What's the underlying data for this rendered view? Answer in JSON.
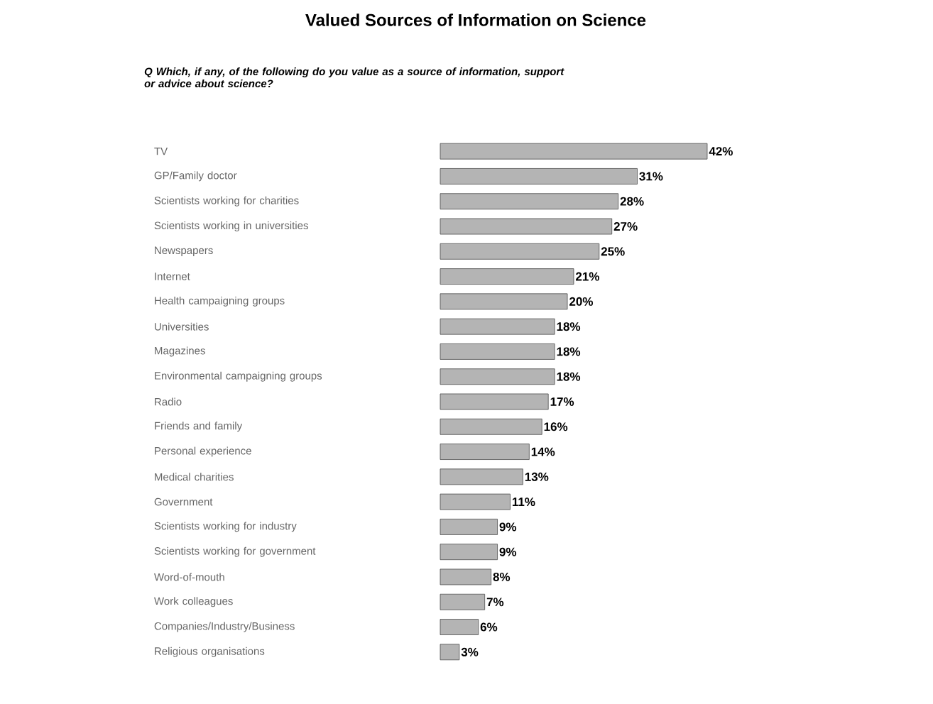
{
  "chart_data": {
    "type": "bar",
    "orientation": "horizontal",
    "title": "Valued Sources of Information on Science",
    "subtitle": "Q     Which, if any, of the following do you value as a source of information, support or advice about science?",
    "categories": [
      "TV",
      "GP/Family doctor",
      "Scientists working for charities",
      "Scientists working in universities",
      "Newspapers",
      "Internet",
      "Health campaigning groups",
      "Universities",
      "Magazines",
      "Environmental campaigning groups",
      "Radio",
      "Friends and family",
      "Personal experience",
      "Medical charities",
      "Government",
      "Scientists working for industry",
      "Scientists working for government",
      "Word-of-mouth",
      "Work colleagues",
      "Companies/Industry/Business",
      "Religious organisations"
    ],
    "values": [
      42,
      31,
      28,
      27,
      25,
      21,
      20,
      18,
      18,
      18,
      17,
      16,
      14,
      13,
      11,
      9,
      9,
      8,
      7,
      6,
      3
    ],
    "value_labels": [
      "42%",
      "31%",
      "28%",
      "27%",
      "25%",
      "21%",
      "20%",
      "18%",
      "18%",
      "18%",
      "17%",
      "16%",
      "14%",
      "13%",
      "11%",
      "9%",
      "9%",
      "8%",
      "7%",
      "6%",
      "3%"
    ],
    "color": "#b4b4b4"
  }
}
